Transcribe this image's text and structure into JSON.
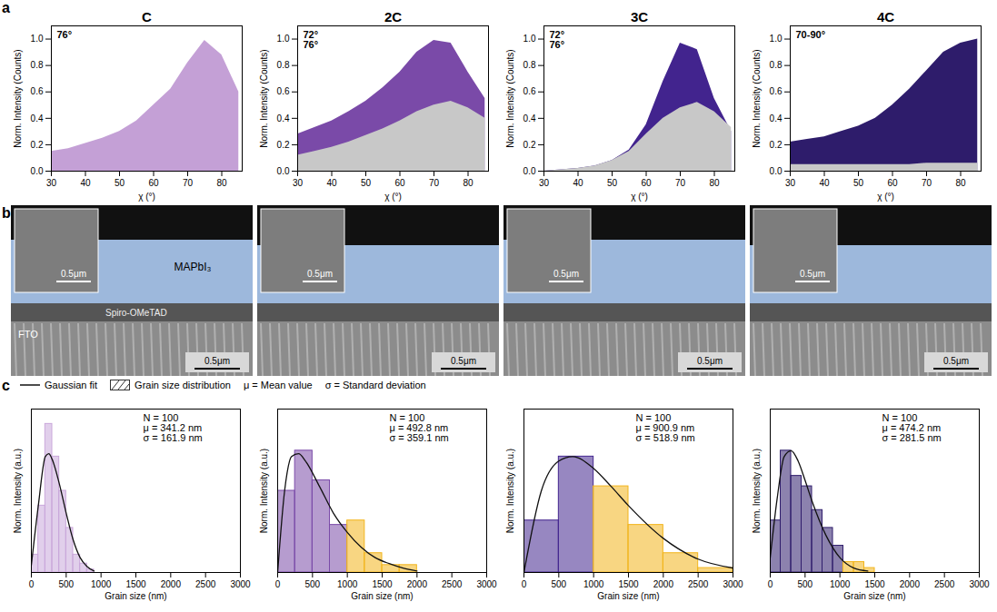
{
  "panel_labels": [
    "a",
    "b",
    "c"
  ],
  "chart_data": [
    {
      "type": "area",
      "title": "C",
      "x_label": "χ (°)",
      "y_label": "Norm. Intensity (Counts)",
      "x": [
        30,
        35,
        40,
        45,
        50,
        55,
        60,
        65,
        70,
        75,
        80,
        85
      ],
      "series": [
        {
          "color": "#c4a0d6",
          "values": [
            0.15,
            0.17,
            0.21,
            0.25,
            0.3,
            0.38,
            0.5,
            0.62,
            0.82,
            0.99,
            0.88,
            0.6
          ]
        }
      ],
      "xlim": [
        30,
        86
      ],
      "xticks": [
        30,
        40,
        50,
        60,
        70,
        80
      ],
      "ylim": [
        0,
        1.1
      ],
      "yticks": [
        {
          "value": 0,
          "label": "0.0"
        },
        0.2,
        0.4,
        0.6,
        0.8,
        {
          "value": 1,
          "label": "1.0"
        }
      ],
      "annotations": [
        "76°"
      ]
    },
    {
      "type": "area",
      "title": "2C",
      "x_label": "χ (°)",
      "y_label": "Norm. Intensity (Counts)",
      "x": [
        30,
        35,
        40,
        45,
        50,
        55,
        60,
        65,
        70,
        75,
        80,
        85
      ],
      "series": [
        {
          "color": "#7a4aa8",
          "values": [
            0.28,
            0.33,
            0.38,
            0.45,
            0.53,
            0.63,
            0.75,
            0.9,
            0.99,
            0.97,
            0.75,
            0.55
          ]
        },
        {
          "color": "#c8c8c8",
          "values": [
            0.12,
            0.15,
            0.18,
            0.22,
            0.27,
            0.32,
            0.38,
            0.45,
            0.5,
            0.53,
            0.48,
            0.4
          ]
        }
      ],
      "xlim": [
        30,
        86
      ],
      "xticks": [
        30,
        40,
        50,
        60,
        70,
        80
      ],
      "ylim": [
        0,
        1.1
      ],
      "yticks": [
        {
          "value": 0,
          "label": "0.0"
        },
        0.2,
        0.4,
        0.6,
        0.8,
        {
          "value": 1,
          "label": "1.0"
        }
      ],
      "annotations": [
        "72°",
        "76°"
      ]
    },
    {
      "type": "area",
      "title": "3C",
      "x_label": "χ (°)",
      "y_label": "Norm. Intensity (Counts)",
      "x": [
        30,
        35,
        40,
        45,
        50,
        55,
        60,
        65,
        70,
        75,
        80,
        85
      ],
      "series": [
        {
          "color": "#42248e",
          "values": [
            0.0,
            0.01,
            0.02,
            0.04,
            0.08,
            0.16,
            0.35,
            0.68,
            0.97,
            0.92,
            0.55,
            0.3
          ]
        },
        {
          "color": "#c8c8c8",
          "values": [
            0.0,
            0.01,
            0.02,
            0.04,
            0.08,
            0.15,
            0.28,
            0.4,
            0.48,
            0.52,
            0.45,
            0.33
          ]
        }
      ],
      "xlim": [
        30,
        86
      ],
      "xticks": [
        30,
        40,
        50,
        60,
        70,
        80
      ],
      "ylim": [
        0,
        1.1
      ],
      "yticks": [
        {
          "value": 0,
          "label": "0.0"
        },
        0.2,
        0.4,
        0.6,
        0.8,
        {
          "value": 1,
          "label": "1.0"
        }
      ],
      "annotations": [
        "72°",
        "76°"
      ]
    },
    {
      "type": "area",
      "title": "4C",
      "x_label": "χ (°)",
      "y_label": "Norm. Intensity (Counts)",
      "x": [
        30,
        35,
        40,
        45,
        50,
        55,
        60,
        65,
        70,
        75,
        80,
        85
      ],
      "series": [
        {
          "color": "#2e1c6b",
          "values": [
            0.22,
            0.24,
            0.26,
            0.3,
            0.34,
            0.4,
            0.5,
            0.62,
            0.76,
            0.9,
            0.97,
            1.0
          ]
        },
        {
          "color": "#c8c8c8",
          "values": [
            0.05,
            0.05,
            0.05,
            0.05,
            0.05,
            0.05,
            0.05,
            0.05,
            0.06,
            0.06,
            0.06,
            0.06
          ]
        }
      ],
      "xlim": [
        30,
        86
      ],
      "xticks": [
        30,
        40,
        50,
        60,
        70,
        80
      ],
      "ylim": [
        0,
        1.1
      ],
      "yticks": [
        {
          "value": 0,
          "label": "0.0"
        },
        0.2,
        0.4,
        0.6,
        0.8,
        {
          "value": 1,
          "label": "1.0"
        }
      ],
      "annotations": [
        "70-90°"
      ]
    },
    {
      "type": "histogram",
      "x_label": "Grain size (nm)",
      "y_label": "Norm. Intensity (a.u.)",
      "bins": [
        0,
        100,
        200,
        300,
        400,
        500,
        600,
        700,
        800,
        900
      ],
      "counts": [
        0.12,
        0.45,
        1.0,
        0.78,
        0.55,
        0.3,
        0.12,
        0.06,
        0.02
      ],
      "colors": [
        "#c9a7da",
        "#c9a7da",
        "#c9a7da",
        "#c9a7da",
        "#c9a7da",
        "#c9a7da",
        "#c9a7da",
        "#c9a7da",
        "#c9a7da"
      ],
      "fit": {
        "color": "#111111",
        "x": [
          0,
          100,
          200,
          250,
          300,
          400,
          500,
          600,
          700,
          800,
          900
        ],
        "values": [
          0.05,
          0.45,
          0.78,
          0.8,
          0.76,
          0.6,
          0.4,
          0.22,
          0.1,
          0.04,
          0.01
        ]
      },
      "xlim": [
        0,
        3000
      ],
      "xticks": [
        0,
        500,
        1000,
        1500,
        2000,
        2500,
        3000
      ],
      "ylim": [
        0,
        1.1
      ],
      "tick_labels": "x",
      "annotations": [
        "N = 100",
        "μ = 341.2 nm",
        "σ = 161.9 nm"
      ]
    },
    {
      "type": "histogram",
      "x_label": "Grain size (nm)",
      "y_label": "Norm. Intensity (a.u.)",
      "bins": [
        0,
        250,
        500,
        750,
        1000,
        1250,
        1500,
        1750,
        2000
      ],
      "counts": [
        0.55,
        0.82,
        0.62,
        0.32,
        0.35,
        0.13,
        0.05,
        0.05
      ],
      "colors": [
        "#7a4aa8",
        "#7a4aa8",
        "#7a4aa8",
        "#7a4aa8",
        "#f2b51c",
        "#f2b51c",
        "#f2b51c",
        "#f2b51c"
      ],
      "fit": {
        "color": "#111111",
        "x": [
          0,
          100,
          200,
          300,
          400,
          600,
          800,
          1000,
          1200,
          1400,
          1600,
          1800,
          2000
        ],
        "values": [
          0.0,
          0.55,
          0.78,
          0.8,
          0.75,
          0.58,
          0.4,
          0.27,
          0.17,
          0.1,
          0.06,
          0.03,
          0.01
        ]
      },
      "xlim": [
        0,
        3000
      ],
      "xticks": [
        0,
        500,
        1000,
        1500,
        2000,
        2500,
        3000
      ],
      "ylim": [
        0,
        1.1
      ],
      "tick_labels": "x",
      "annotations": [
        "N = 100",
        "μ = 492.8 nm",
        "σ = 359.1 nm"
      ]
    },
    {
      "type": "histogram",
      "x_label": "Grain size (nm)",
      "y_label": "Norm. Intensity (a.u.)",
      "bins": [
        0,
        500,
        1000,
        1500,
        2000,
        2500,
        3000
      ],
      "counts": [
        0.35,
        0.78,
        0.58,
        0.32,
        0.13,
        0.03
      ],
      "colors": [
        "#42248e",
        "#42248e",
        "#f2b51c",
        "#f2b51c",
        "#f2b51c",
        "#f2b51c"
      ],
      "fit": {
        "color": "#111111",
        "x": [
          0,
          250,
          500,
          700,
          1000,
          1250,
          1500,
          2000,
          2500,
          3000
        ],
        "values": [
          0.0,
          0.55,
          0.75,
          0.78,
          0.7,
          0.58,
          0.45,
          0.23,
          0.09,
          0.03
        ]
      },
      "xlim": [
        0,
        3000
      ],
      "xticks": [
        0,
        500,
        1000,
        1500,
        2000,
        2500,
        3000
      ],
      "ylim": [
        0,
        1.1
      ],
      "tick_labels": "x",
      "annotations": [
        "N = 100",
        "μ = 900.9 nm",
        "σ = 518.9 nm"
      ]
    },
    {
      "type": "histogram",
      "x_label": "Grain size (nm)",
      "y_label": "Norm. Intensity (a.u.)",
      "bins": [
        0,
        150,
        300,
        450,
        600,
        750,
        900,
        1050,
        1200,
        1350,
        1500
      ],
      "counts": [
        0.35,
        0.82,
        0.65,
        0.58,
        0.42,
        0.3,
        0.18,
        0.07,
        0.07,
        0.03
      ],
      "colors": [
        "#2e1c6b",
        "#2e1c6b",
        "#2e1c6b",
        "#2e1c6b",
        "#2e1c6b",
        "#2e1c6b",
        "#2e1c6b",
        "#f2b51c",
        "#f2b51c",
        "#f2b51c"
      ],
      "fit": {
        "color": "#111111",
        "x": [
          0,
          100,
          200,
          300,
          400,
          500,
          600,
          800,
          1000,
          1200,
          1400
        ],
        "values": [
          0.1,
          0.5,
          0.78,
          0.82,
          0.75,
          0.62,
          0.48,
          0.25,
          0.1,
          0.03,
          0.01
        ]
      },
      "xlim": [
        0,
        3000
      ],
      "xticks": [
        0,
        500,
        1000,
        1500,
        2000,
        2500,
        3000
      ],
      "ylim": [
        0,
        1.1
      ],
      "tick_labels": "x",
      "annotations": [
        "N = 100",
        "μ = 474.2 nm",
        "σ = 281.5 nm"
      ]
    }
  ],
  "sem_images": [
    {
      "layers": [
        "MAPbI₃",
        "Spiro-OMeTAD",
        "FTO"
      ],
      "inset_scale": "0.5μm",
      "scale": "0.5μm"
    },
    {
      "inset_scale": "0.5μm",
      "scale": "0.5μm"
    },
    {
      "inset_scale": "0.5μm",
      "scale": "0.5μm"
    },
    {
      "inset_scale": "0.5μm",
      "scale": "0.5μm"
    }
  ],
  "histogram_legend": {
    "entries": [
      "Gaussian fit",
      "Grain size distribution"
    ],
    "notes": [
      "μ = Mean value",
      "σ = Standard deviation"
    ]
  }
}
